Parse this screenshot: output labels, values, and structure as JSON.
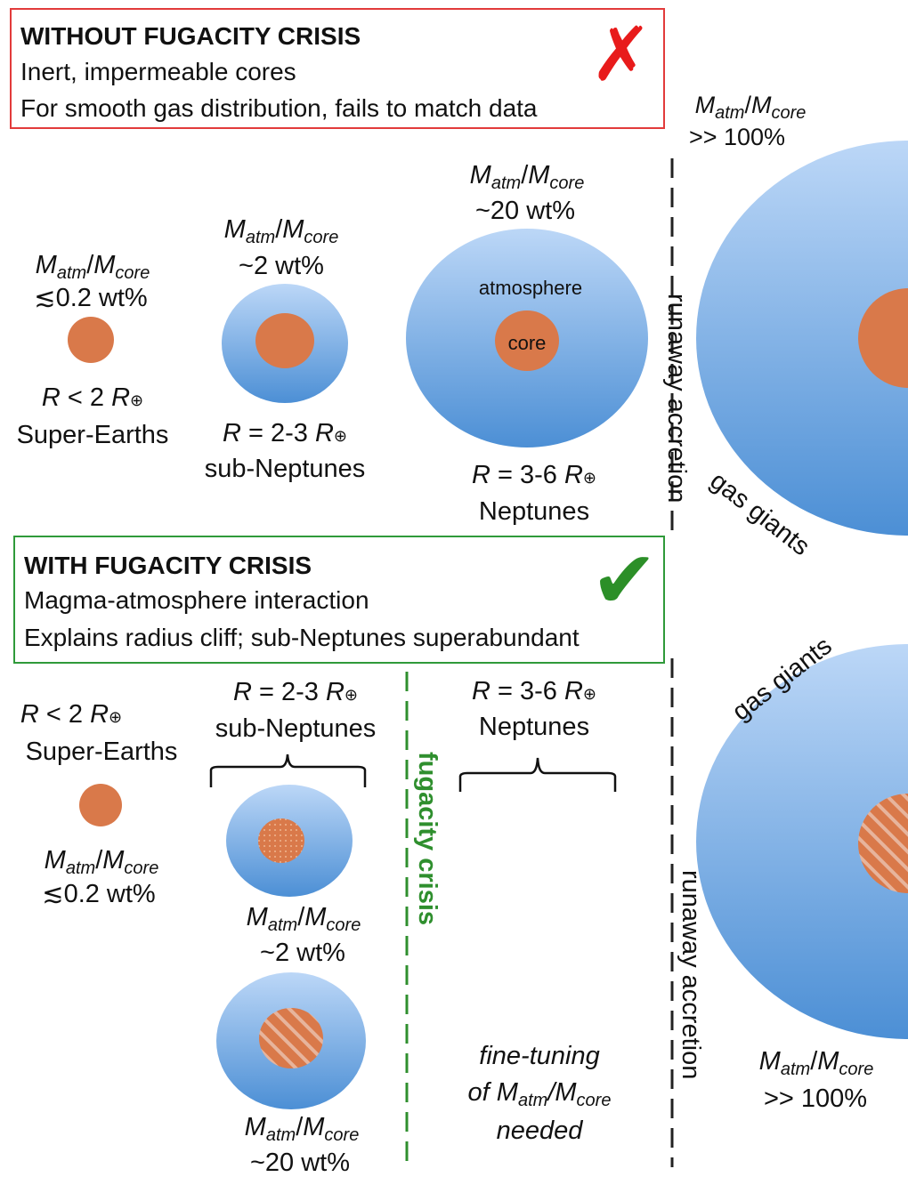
{
  "top_box": {
    "title": "WITHOUT FUGACITY CRISIS",
    "line1": "Inert, impermeable cores",
    "line2": "For smooth gas distribution, fails to match data",
    "mark": "✗"
  },
  "bottom_box": {
    "title": "WITH FUGACITY CRISIS",
    "line1": "Magma-atmosphere interaction",
    "line2": "Explains radius cliff; sub-Neptunes superabundant",
    "mark": "✔"
  },
  "labels": {
    "M": "M",
    "atm": "atm",
    "core_sub": "core",
    "R": "R",
    "earth": "⊕",
    "le02": "≲0.2 wt%",
    "ratio_2": "~2 wt%",
    "ratio_20": "~20 wt%",
    "ratio_100": ">> 100%",
    "lt2": " < 2 ",
    "eq23": " = 2-3 ",
    "eq36": " = 3-6 ",
    "super_earths": "Super-Earths",
    "sub_neptunes": "sub-Neptunes",
    "neptunes": "Neptunes",
    "gas_giants": "gas giants",
    "atmosphere": "atmosphere",
    "core": "core",
    "runaway": "runaway accretion",
    "fugacity": "fugacity crisis",
    "fine1": "fine-tuning",
    "fine2_prefix": "of ",
    "needed": "needed"
  },
  "colors": {
    "red_border": "#e23b3b",
    "green_border": "#2f9a3a",
    "core": "#d9794a",
    "atmosphere_light": "#b8d4f5",
    "atmosphere_dark": "#4a8fd6",
    "check": "#2c8f28",
    "cross": "#e81b1b"
  }
}
